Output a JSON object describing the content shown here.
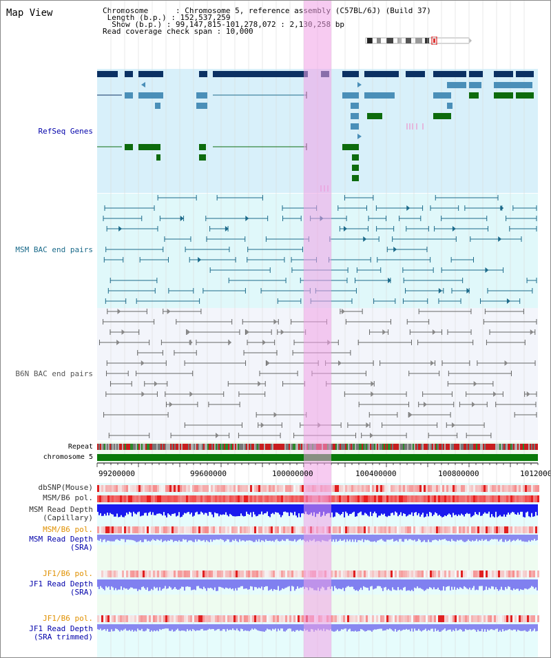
{
  "title": "Map View",
  "info": {
    "chromosome_key": "Chromosome",
    "chromosome_val": "Chromosome 5, reference assembly (C57BL/6J) (Build 37)",
    "length_key": "Length (b.p.)",
    "length_val": "152,537,259",
    "show_key": "Show (b.p.)",
    "show_val": "99,147,815-101,278,072 : 2,130,258 bp",
    "span_key": "Read coverage check span",
    "span_val": "10,000"
  },
  "tracks": {
    "refseq": "RefSeq Genes",
    "msm_bac": "MSM BAC end pairs",
    "b6n_bac": "B6N BAC end pairs",
    "repeat": "Repeat",
    "chromosome": "chromosome 5",
    "dbsnp": "dbSNP(Mouse)",
    "msm_b6_pol_1": "MSM/B6 pol.",
    "msm_depth_cap_1": "MSM Read Depth",
    "msm_depth_cap_2": "(Capillary)",
    "msm_b6_pol_2": "MSM/B6 pol.",
    "msm_depth_sra_1": "MSM Read Depth",
    "msm_depth_sra_2": "(SRA)",
    "jf1_pol_1": "JF1/B6 pol.",
    "jf1_depth_sra_1": "JF1 Read Depth",
    "jf1_depth_sra_2": "(SRA)",
    "jf1_pol_2": "JF1/B6 pol.",
    "jf1_depth_trim_1": "JF1 Read Depth",
    "jf1_depth_trim_2": "(SRA trimmed)"
  },
  "axis": {
    "ticks": [
      "99200000",
      "99600000",
      "100000000",
      "100400000",
      "100800000",
      "1012000"
    ]
  },
  "colors": {
    "refseq_bg": "#d8f0fa",
    "msm_bg": "#e0f8fa",
    "b6n_bg": "#f3f5fb",
    "gene_dark": "#0b3163",
    "gene_mid": "#4a8fb8",
    "gene_green": "#0d6b0d",
    "bac_msm": "#1c6a8a",
    "bac_b6n": "#666666",
    "chromosome": "#0a7a0a",
    "highlight": "#f0a0e6",
    "label_blue": "#0000aa",
    "label_teal": "#1a6a8a",
    "label_orange": "#e09000"
  }
}
